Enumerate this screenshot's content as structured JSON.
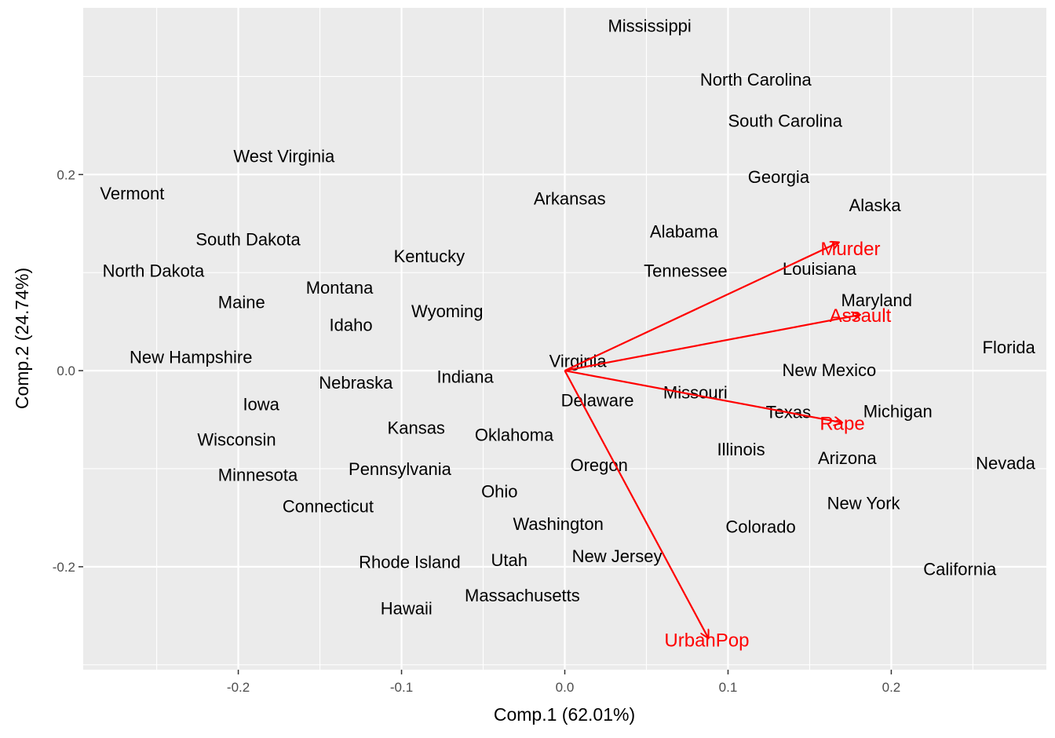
{
  "chart_data": {
    "type": "scatter",
    "subtype": "pca-biplot",
    "xlabel": "Comp.1 (62.01%)",
    "ylabel": "Comp.2 (24.74%)",
    "xlim": [
      -0.295,
      0.295
    ],
    "ylim": [
      -0.305,
      0.37
    ],
    "x_ticks": [
      -0.2,
      -0.1,
      0.0,
      0.1,
      0.2
    ],
    "x_tick_labels": [
      "-0.2",
      "-0.1",
      "0.0",
      "0.1",
      "0.2"
    ],
    "y_ticks": [
      -0.2,
      0.0,
      0.2
    ],
    "y_tick_labels": [
      "-0.2",
      "0.0",
      "0.2"
    ],
    "grid": true,
    "panel_background": "#ebebeb",
    "grid_color": "#ffffff",
    "label_color": "#000000",
    "arrow_color": "#ff0000",
    "points": [
      {
        "label": "Mississippi",
        "x": 0.052,
        "y": 0.352
      },
      {
        "label": "North Carolina",
        "x": 0.117,
        "y": 0.297
      },
      {
        "label": "South Carolina",
        "x": 0.135,
        "y": 0.255
      },
      {
        "label": "West Virginia",
        "x": -0.172,
        "y": 0.219
      },
      {
        "label": "Georgia",
        "x": 0.131,
        "y": 0.198
      },
      {
        "label": "Vermont",
        "x": -0.265,
        "y": 0.181
      },
      {
        "label": "Arkansas",
        "x": 0.003,
        "y": 0.176
      },
      {
        "label": "Alaska",
        "x": 0.19,
        "y": 0.169
      },
      {
        "label": "South Dakota",
        "x": -0.194,
        "y": 0.134
      },
      {
        "label": "Alabama",
        "x": 0.073,
        "y": 0.142
      },
      {
        "label": "Kentucky",
        "x": -0.083,
        "y": 0.117
      },
      {
        "label": "Louisiana",
        "x": 0.156,
        "y": 0.104
      },
      {
        "label": "North Dakota",
        "x": -0.252,
        "y": 0.102
      },
      {
        "label": "Tennessee",
        "x": 0.074,
        "y": 0.102
      },
      {
        "label": "Montana",
        "x": -0.138,
        "y": 0.085
      },
      {
        "label": "Maryland",
        "x": 0.191,
        "y": 0.072
      },
      {
        "label": "Maine",
        "x": -0.198,
        "y": 0.07
      },
      {
        "label": "Wyoming",
        "x": -0.072,
        "y": 0.061
      },
      {
        "label": "Idaho",
        "x": -0.131,
        "y": 0.047
      },
      {
        "label": "Florida",
        "x": 0.272,
        "y": 0.024
      },
      {
        "label": "Virginia",
        "x": 0.008,
        "y": 0.01
      },
      {
        "label": "New Hampshire",
        "x": -0.229,
        "y": 0.014
      },
      {
        "label": "New Mexico",
        "x": 0.162,
        "y": 0.001
      },
      {
        "label": "Indiana",
        "x": -0.061,
        "y": -0.006
      },
      {
        "label": "Nebraska",
        "x": -0.128,
        "y": -0.012
      },
      {
        "label": "Missouri",
        "x": 0.08,
        "y": -0.022
      },
      {
        "label": "Delaware",
        "x": 0.02,
        "y": -0.03
      },
      {
        "label": "Iowa",
        "x": -0.186,
        "y": -0.034
      },
      {
        "label": "Texas",
        "x": 0.137,
        "y": -0.042
      },
      {
        "label": "Michigan",
        "x": 0.204,
        "y": -0.041
      },
      {
        "label": "Kansas",
        "x": -0.091,
        "y": -0.058
      },
      {
        "label": "Oklahoma",
        "x": -0.031,
        "y": -0.065
      },
      {
        "label": "Wisconsin",
        "x": -0.201,
        "y": -0.07
      },
      {
        "label": "Illinois",
        "x": 0.108,
        "y": -0.08
      },
      {
        "label": "Arizona",
        "x": 0.173,
        "y": -0.089
      },
      {
        "label": "Nevada",
        "x": 0.27,
        "y": -0.094
      },
      {
        "label": "Pennsylvania",
        "x": -0.101,
        "y": -0.1
      },
      {
        "label": "Oregon",
        "x": 0.021,
        "y": -0.096
      },
      {
        "label": "Minnesota",
        "x": -0.188,
        "y": -0.106
      },
      {
        "label": "Ohio",
        "x": -0.04,
        "y": -0.123
      },
      {
        "label": "Connecticut",
        "x": -0.145,
        "y": -0.138
      },
      {
        "label": "New York",
        "x": 0.183,
        "y": -0.135
      },
      {
        "label": "Washington",
        "x": -0.004,
        "y": -0.156
      },
      {
        "label": "Colorado",
        "x": 0.12,
        "y": -0.159
      },
      {
        "label": "New Jersey",
        "x": 0.032,
        "y": -0.189
      },
      {
        "label": "Rhode Island",
        "x": -0.095,
        "y": -0.195
      },
      {
        "label": "Utah",
        "x": -0.034,
        "y": -0.193
      },
      {
        "label": "California",
        "x": 0.242,
        "y": -0.202
      },
      {
        "label": "Massachusetts",
        "x": -0.026,
        "y": -0.229
      },
      {
        "label": "Hawaii",
        "x": -0.097,
        "y": -0.242
      }
    ],
    "loadings": [
      {
        "label": "Murder",
        "x": 0.168,
        "y": 0.131,
        "label_x": 0.175,
        "label_y": 0.125
      },
      {
        "label": "Assault",
        "x": 0.181,
        "y": 0.057,
        "label_x": 0.181,
        "label_y": 0.057
      },
      {
        "label": "Rape",
        "x": 0.17,
        "y": -0.053,
        "label_x": 0.17,
        "label_y": -0.053
      },
      {
        "label": "UrbanPop",
        "x": 0.088,
        "y": -0.273,
        "label_x": 0.087,
        "label_y": -0.274
      }
    ]
  }
}
